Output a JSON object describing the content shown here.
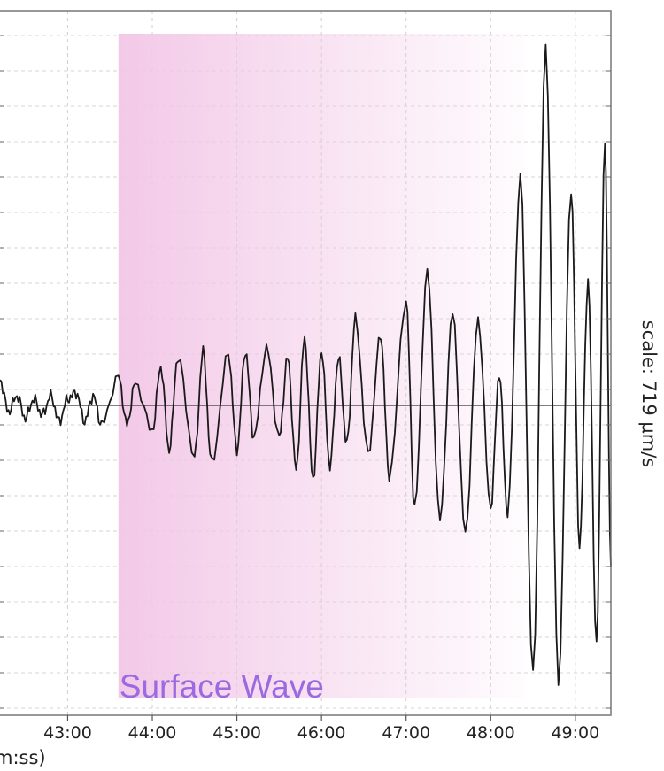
{
  "chart_data": {
    "type": "line",
    "x_tick_labels": [
      "43:00",
      "44:00",
      "45:00",
      "46:00",
      "47:00",
      "48:00",
      "49:00"
    ],
    "x_ticks_minutes": [
      43,
      44,
      45,
      46,
      47,
      48,
      49
    ],
    "xlim_minutes": [
      42.2,
      49.42
    ],
    "x_axis_label_partial": "m:ss)",
    "scale_label": "scale: 719 μm/s",
    "grid": true,
    "phase_window": {
      "label": "Surface Wave",
      "start_minutes": 43.6,
      "end_minutes": 48.4,
      "color": "#f2c6e6",
      "label_color": "#9b6ae0"
    },
    "series": [
      {
        "color": "#1a1a1a",
        "description_points": [
          [
            42.2,
            0.08
          ],
          [
            42.3,
            -0.02
          ],
          [
            42.4,
            0.03
          ],
          [
            42.5,
            -0.04
          ],
          [
            42.6,
            0.02
          ],
          [
            42.7,
            -0.03
          ],
          [
            42.8,
            0.03
          ],
          [
            42.9,
            -0.05
          ],
          [
            43.0,
            0.02
          ],
          [
            43.1,
            0.04
          ],
          [
            43.2,
            -0.05
          ],
          [
            43.3,
            0.03
          ],
          [
            43.4,
            -0.06
          ],
          [
            43.6,
            0.09
          ],
          [
            43.7,
            -0.06
          ],
          [
            43.8,
            0.07
          ],
          [
            44.0,
            -0.08
          ],
          [
            44.1,
            0.12
          ],
          [
            44.2,
            -0.14
          ],
          [
            44.3,
            0.15
          ],
          [
            44.5,
            -0.16
          ],
          [
            44.6,
            0.17
          ],
          [
            44.7,
            -0.18
          ],
          [
            44.9,
            0.16
          ],
          [
            45.0,
            -0.14
          ],
          [
            45.1,
            0.17
          ],
          [
            45.2,
            -0.1
          ],
          [
            45.35,
            0.18
          ],
          [
            45.5,
            -0.1
          ],
          [
            45.6,
            0.15
          ],
          [
            45.7,
            -0.2
          ],
          [
            45.8,
            0.21
          ],
          [
            45.9,
            -0.23
          ],
          [
            46.0,
            0.17
          ],
          [
            46.1,
            -0.19
          ],
          [
            46.2,
            0.15
          ],
          [
            46.3,
            -0.12
          ],
          [
            46.4,
            0.27
          ],
          [
            46.55,
            -0.15
          ],
          [
            46.7,
            0.22
          ],
          [
            46.8,
            -0.22
          ],
          [
            47.0,
            0.33
          ],
          [
            47.1,
            -0.32
          ],
          [
            47.25,
            0.42
          ],
          [
            47.4,
            -0.36
          ],
          [
            47.55,
            0.29
          ],
          [
            47.7,
            -0.4
          ],
          [
            47.85,
            0.27
          ],
          [
            48.0,
            -0.32
          ],
          [
            48.1,
            0.1
          ],
          [
            48.2,
            -0.34
          ],
          [
            48.35,
            0.72
          ],
          [
            48.5,
            -0.85
          ],
          [
            48.65,
            1.12
          ],
          [
            48.8,
            -0.87
          ],
          [
            48.95,
            0.68
          ],
          [
            49.05,
            -0.44
          ],
          [
            49.15,
            0.39
          ],
          [
            49.25,
            -0.75
          ],
          [
            49.35,
            0.82
          ],
          [
            49.42,
            -0.5
          ]
        ]
      }
    ]
  }
}
